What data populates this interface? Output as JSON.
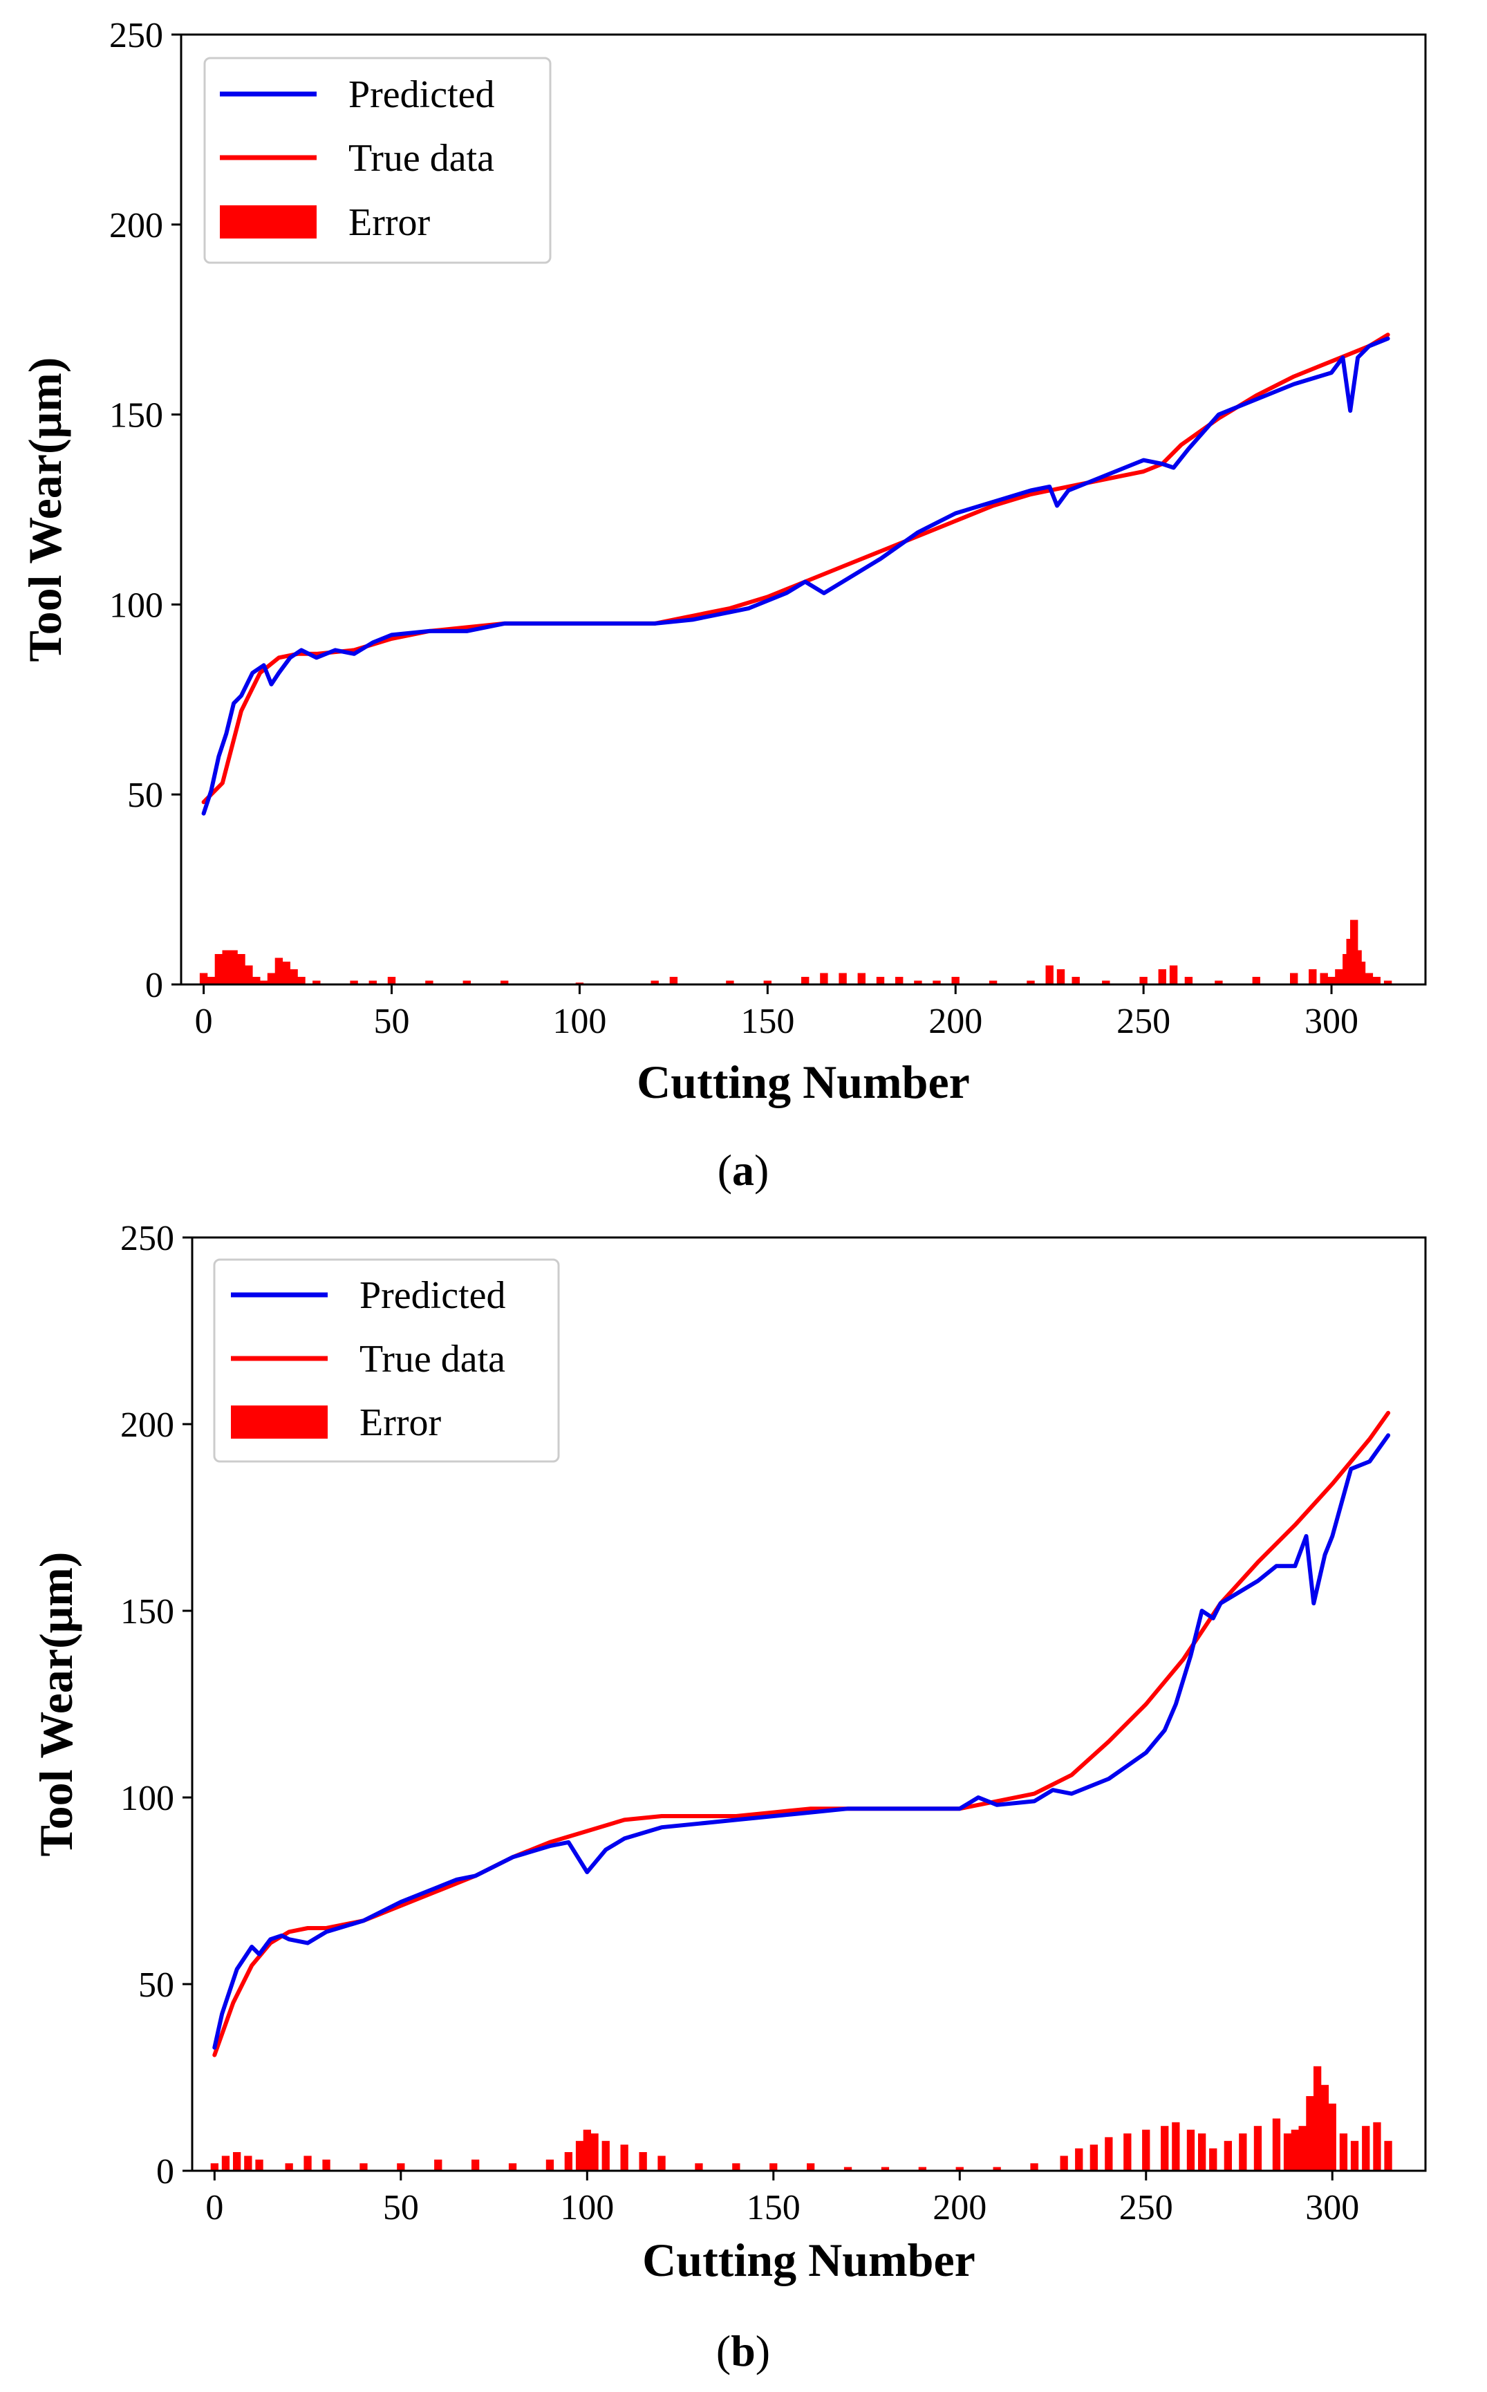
{
  "chart_data": [
    {
      "type": "line",
      "panel_label": "a",
      "xlabel": "Cutting Number",
      "ylabel": "Tool Wear(μm)",
      "xlim": [
        -6,
        325
      ],
      "ylim": [
        0,
        250
      ],
      "xticks": [
        0,
        50,
        100,
        150,
        200,
        250,
        300
      ],
      "yticks": [
        0,
        50,
        100,
        150,
        200,
        250
      ],
      "legend": {
        "position": "top-left",
        "entries": [
          {
            "label": "Predicted",
            "kind": "line",
            "color": "#0000ee"
          },
          {
            "label": "True data",
            "kind": "line",
            "color": "#ff0000"
          },
          {
            "label": "Error",
            "kind": "patch",
            "color": "#ff0000"
          }
        ]
      },
      "series": [
        {
          "name": "True data",
          "color": "#ff0000",
          "x": [
            0,
            5,
            10,
            15,
            20,
            25,
            30,
            40,
            50,
            60,
            70,
            80,
            90,
            100,
            110,
            120,
            130,
            140,
            150,
            160,
            170,
            180,
            190,
            200,
            210,
            220,
            230,
            240,
            250,
            255,
            260,
            270,
            280,
            290,
            300,
            310,
            315
          ],
          "y": [
            48,
            53,
            72,
            82,
            86,
            87,
            87,
            88,
            91,
            93,
            94,
            95,
            95,
            95,
            95,
            95,
            97,
            99,
            102,
            106,
            110,
            114,
            118,
            122,
            126,
            129,
            131,
            133,
            135,
            137,
            142,
            149,
            155,
            160,
            164,
            168,
            171
          ]
        },
        {
          "name": "Predicted",
          "color": "#0000ee",
          "x": [
            0,
            2,
            4,
            6,
            8,
            10,
            13,
            16,
            18,
            20,
            23,
            26,
            30,
            35,
            40,
            45,
            50,
            60,
            70,
            80,
            90,
            100,
            110,
            120,
            130,
            140,
            145,
            150,
            155,
            160,
            165,
            170,
            180,
            190,
            200,
            210,
            220,
            225,
            227,
            230,
            240,
            250,
            255,
            258,
            262,
            270,
            280,
            290,
            300,
            303,
            305,
            307,
            310,
            315
          ],
          "y": [
            45,
            51,
            60,
            66,
            74,
            76,
            82,
            84,
            79,
            82,
            86,
            88,
            86,
            88,
            87,
            90,
            92,
            93,
            93,
            95,
            95,
            95,
            95,
            95,
            96,
            98,
            99,
            101,
            103,
            106,
            103,
            106,
            112,
            119,
            124,
            127,
            130,
            131,
            126,
            130,
            134,
            138,
            137,
            136,
            141,
            150,
            154,
            158,
            161,
            165,
            151,
            165,
            168,
            170
          ]
        },
        {
          "name": "Error",
          "type": "bar",
          "color": "#ff0000",
          "x": [
            0,
            2,
            4,
            6,
            8,
            10,
            12,
            14,
            16,
            18,
            20,
            22,
            24,
            26,
            30,
            40,
            45,
            50,
            60,
            70,
            80,
            100,
            120,
            125,
            140,
            150,
            160,
            165,
            170,
            175,
            180,
            185,
            190,
            195,
            200,
            210,
            220,
            225,
            228,
            232,
            240,
            250,
            255,
            258,
            262,
            270,
            280,
            290,
            295,
            298,
            300,
            302,
            304,
            305,
            306,
            307,
            308,
            310,
            312,
            315
          ],
          "y": [
            3,
            2,
            8,
            9,
            9,
            8,
            5,
            2,
            1,
            3,
            7,
            6,
            4,
            2,
            1,
            1,
            1,
            2,
            1,
            1,
            1,
            0.5,
            1,
            2,
            1,
            1,
            2,
            3,
            3,
            3,
            2,
            2,
            1,
            1,
            2,
            1,
            1,
            5,
            4,
            2,
            1,
            2,
            4,
            5,
            2,
            1,
            2,
            3,
            4,
            3,
            2,
            4,
            8,
            12,
            17,
            9,
            6,
            3,
            2,
            1
          ]
        }
      ]
    },
    {
      "type": "line",
      "panel_label": "b",
      "xlabel": "Cutting Number",
      "ylabel": "Tool Wear(μm)",
      "xlim": [
        -6,
        325
      ],
      "ylim": [
        0,
        250
      ],
      "xticks": [
        0,
        50,
        100,
        150,
        200,
        250,
        300
      ],
      "yticks": [
        0,
        50,
        100,
        150,
        200,
        250
      ],
      "legend": {
        "position": "top-left",
        "entries": [
          {
            "label": "Predicted",
            "kind": "line",
            "color": "#0000ee"
          },
          {
            "label": "True data",
            "kind": "line",
            "color": "#ff0000"
          },
          {
            "label": "Error",
            "kind": "patch",
            "color": "#ff0000"
          }
        ]
      },
      "series": [
        {
          "name": "True data",
          "color": "#ff0000",
          "x": [
            0,
            5,
            10,
            15,
            20,
            25,
            30,
            40,
            50,
            60,
            70,
            80,
            90,
            100,
            110,
            120,
            130,
            140,
            150,
            160,
            170,
            180,
            190,
            200,
            210,
            220,
            230,
            240,
            250,
            260,
            270,
            280,
            290,
            300,
            310,
            315
          ],
          "y": [
            31,
            45,
            55,
            61,
            64,
            65,
            65,
            67,
            71,
            75,
            79,
            84,
            88,
            91,
            94,
            95,
            95,
            95,
            96,
            97,
            97,
            97,
            97,
            97,
            99,
            101,
            106,
            115,
            125,
            137,
            152,
            163,
            173,
            184,
            196,
            203
          ]
        },
        {
          "name": "Predicted",
          "color": "#0000ee",
          "x": [
            0,
            2,
            4,
            6,
            8,
            10,
            12,
            15,
            18,
            20,
            25,
            30,
            40,
            50,
            60,
            65,
            70,
            80,
            90,
            95,
            100,
            105,
            110,
            120,
            130,
            140,
            150,
            160,
            170,
            180,
            190,
            200,
            205,
            210,
            220,
            225,
            230,
            240,
            250,
            255,
            258,
            262,
            265,
            268,
            270,
            275,
            280,
            285,
            290,
            293,
            295,
            298,
            300,
            305,
            310,
            315
          ],
          "y": [
            33,
            42,
            48,
            54,
            57,
            60,
            58,
            62,
            63,
            62,
            61,
            64,
            67,
            72,
            76,
            78,
            79,
            84,
            87,
            88,
            80,
            86,
            89,
            92,
            93,
            94,
            95,
            96,
            97,
            97,
            97,
            97,
            100,
            98,
            99,
            102,
            101,
            105,
            112,
            118,
            125,
            138,
            150,
            148,
            152,
            155,
            158,
            162,
            162,
            170,
            152,
            165,
            170,
            188,
            190,
            197
          ]
        },
        {
          "name": "Error",
          "type": "bar",
          "color": "#ff0000",
          "x": [
            0,
            3,
            6,
            9,
            12,
            20,
            25,
            30,
            40,
            50,
            60,
            70,
            80,
            90,
            95,
            98,
            100,
            102,
            105,
            110,
            115,
            120,
            130,
            140,
            150,
            160,
            170,
            180,
            190,
            200,
            210,
            220,
            228,
            232,
            236,
            240,
            245,
            250,
            255,
            258,
            262,
            265,
            268,
            272,
            276,
            280,
            285,
            288,
            290,
            292,
            294,
            296,
            298,
            300,
            303,
            306,
            309,
            312,
            315
          ],
          "y": [
            2,
            4,
            5,
            4,
            3,
            2,
            4,
            3,
            2,
            2,
            3,
            3,
            2,
            3,
            5,
            8,
            11,
            10,
            8,
            7,
            5,
            4,
            2,
            2,
            2,
            2,
            1,
            1,
            1,
            1,
            1,
            2,
            4,
            6,
            7,
            9,
            10,
            11,
            12,
            13,
            11,
            10,
            6,
            8,
            10,
            12,
            14,
            10,
            11,
            12,
            20,
            28,
            23,
            18,
            10,
            8,
            12,
            13,
            8
          ]
        }
      ]
    }
  ]
}
